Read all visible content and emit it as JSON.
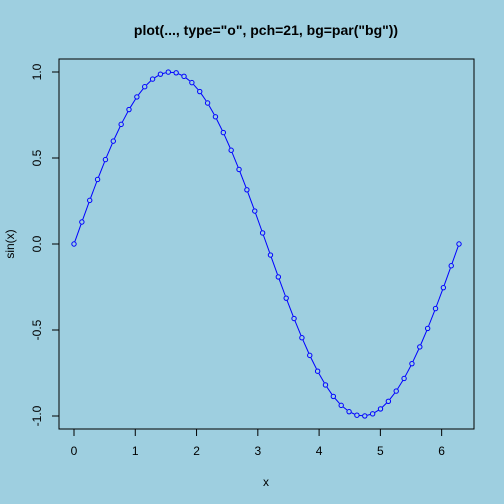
{
  "chart_data": {
    "type": "line",
    "title": "plot(..., type=\"o\", pch=21, bg=par(\"bg\"))",
    "xlabel": "x",
    "ylabel": "sin(x)",
    "xlim": [
      0,
      6.2832
    ],
    "ylim": [
      -1,
      1
    ],
    "x_ticks": [
      0,
      1,
      2,
      3,
      4,
      5,
      6
    ],
    "x_tick_labels": [
      "0",
      "1",
      "2",
      "3",
      "4",
      "5",
      "6"
    ],
    "y_ticks": [
      -1.0,
      -0.5,
      0.0,
      0.5,
      1.0
    ],
    "y_tick_labels": [
      "-1.0",
      "-0.5",
      "0.0",
      "0.5",
      "1.0"
    ],
    "grid": false,
    "line_color": "#0000ff",
    "point_fill": "#9ecfe0",
    "background": "#9ecfe0",
    "series": [
      {
        "x": [
          0,
          0.1283,
          0.2565,
          0.3848,
          0.5131,
          0.6413,
          0.7696,
          0.8976,
          1.0259,
          1.1542,
          1.2824,
          1.4107,
          1.539,
          1.6672,
          1.7955,
          1.9238,
          2.052,
          2.1803,
          2.3085,
          2.4368,
          2.5651,
          2.6933,
          2.8216,
          2.9499,
          3.0781,
          3.2064,
          3.3347,
          3.4629,
          3.5912,
          3.7195,
          3.8477,
          3.976,
          4.1043,
          4.2325,
          4.3608,
          4.4891,
          4.6173,
          4.7456,
          4.8738,
          5.0021,
          5.1304,
          5.2586,
          5.3869,
          5.5152,
          5.6434,
          5.7717,
          5.9,
          6.0282,
          6.1565,
          6.2832
        ],
        "y": [
          0.0,
          0.1279,
          0.2537,
          0.3753,
          0.4907,
          0.5981,
          0.6956,
          0.7818,
          0.8551,
          0.9144,
          0.9587,
          0.9874,
          0.9995,
          0.9954,
          0.9749,
          0.9382,
          0.8863,
          0.8197,
          0.7397,
          0.6478,
          0.5451,
          0.4335,
          0.3152,
          0.1917,
          0.0643,
          -0.0641,
          -0.1913,
          -0.315,
          -0.4333,
          -0.5449,
          -0.6476,
          -0.7395,
          -0.8196,
          -0.8862,
          -0.9381,
          -0.9748,
          -0.9954,
          -0.9995,
          -0.9874,
          -0.9588,
          -0.9145,
          -0.8552,
          -0.7819,
          -0.6957,
          -0.5982,
          -0.4908,
          -0.3754,
          -0.2538,
          -0.1264,
          0.0
        ]
      }
    ]
  }
}
